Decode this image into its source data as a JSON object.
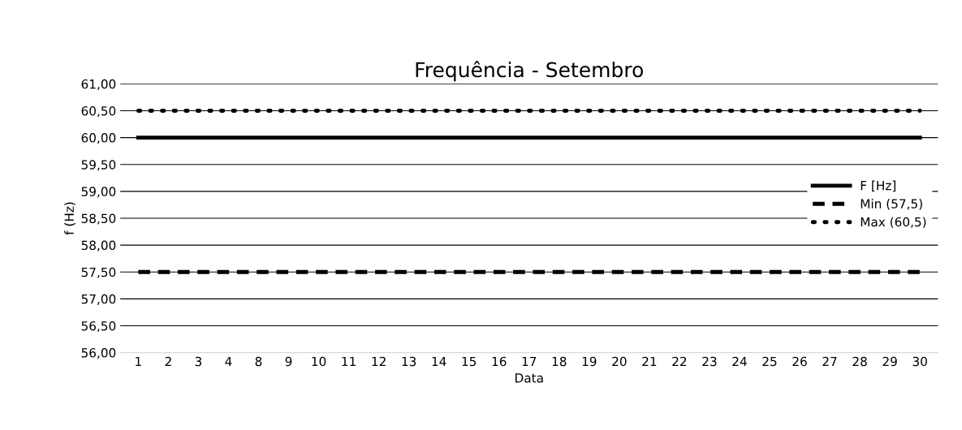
{
  "chart_data": {
    "type": "line",
    "title": "Frequência - Setembro",
    "xlabel": "Data",
    "ylabel": "f (Hz)",
    "categories": [
      "1",
      "2",
      "3",
      "4",
      "8",
      "9",
      "10",
      "11",
      "12",
      "13",
      "14",
      "15",
      "16",
      "17",
      "18",
      "19",
      "20",
      "21",
      "22",
      "23",
      "24",
      "25",
      "26",
      "27",
      "28",
      "29",
      "30"
    ],
    "series": [
      {
        "name": "F [Hz]",
        "color": "#000000",
        "line_style": "solid",
        "values": [
          60,
          60,
          60,
          60,
          60,
          60,
          60,
          60,
          60,
          60,
          60,
          60,
          60,
          60,
          60,
          60,
          60,
          60,
          60,
          60,
          60,
          60,
          60,
          60,
          60,
          60,
          60
        ]
      },
      {
        "name": "Min (57,5)",
        "color": "#000000",
        "line_style": "dashed",
        "values": [
          57.5,
          57.5,
          57.5,
          57.5,
          57.5,
          57.5,
          57.5,
          57.5,
          57.5,
          57.5,
          57.5,
          57.5,
          57.5,
          57.5,
          57.5,
          57.5,
          57.5,
          57.5,
          57.5,
          57.5,
          57.5,
          57.5,
          57.5,
          57.5,
          57.5,
          57.5,
          57.5
        ]
      },
      {
        "name": "Max (60,5)",
        "color": "#000000",
        "line_style": "dotted",
        "values": [
          60.5,
          60.5,
          60.5,
          60.5,
          60.5,
          60.5,
          60.5,
          60.5,
          60.5,
          60.5,
          60.5,
          60.5,
          60.5,
          60.5,
          60.5,
          60.5,
          60.5,
          60.5,
          60.5,
          60.5,
          60.5,
          60.5,
          60.5,
          60.5,
          60.5,
          60.5,
          60.5
        ]
      }
    ],
    "ylim": [
      56,
      61
    ],
    "yticks": [
      {
        "value": 56,
        "label": "56,00"
      },
      {
        "value": 56.5,
        "label": "56,50"
      },
      {
        "value": 57,
        "label": "57,00"
      },
      {
        "value": 57.5,
        "label": "57,50"
      },
      {
        "value": 58,
        "label": "58,00"
      },
      {
        "value": 58.5,
        "label": "58,50"
      },
      {
        "value": 59,
        "label": "59,00"
      },
      {
        "value": 59.5,
        "label": "59,50"
      },
      {
        "value": 60,
        "label": "60,00"
      },
      {
        "value": 60.5,
        "label": "60,50"
      },
      {
        "value": 61,
        "label": "61,00"
      }
    ],
    "grid": "y",
    "legend": "right"
  }
}
